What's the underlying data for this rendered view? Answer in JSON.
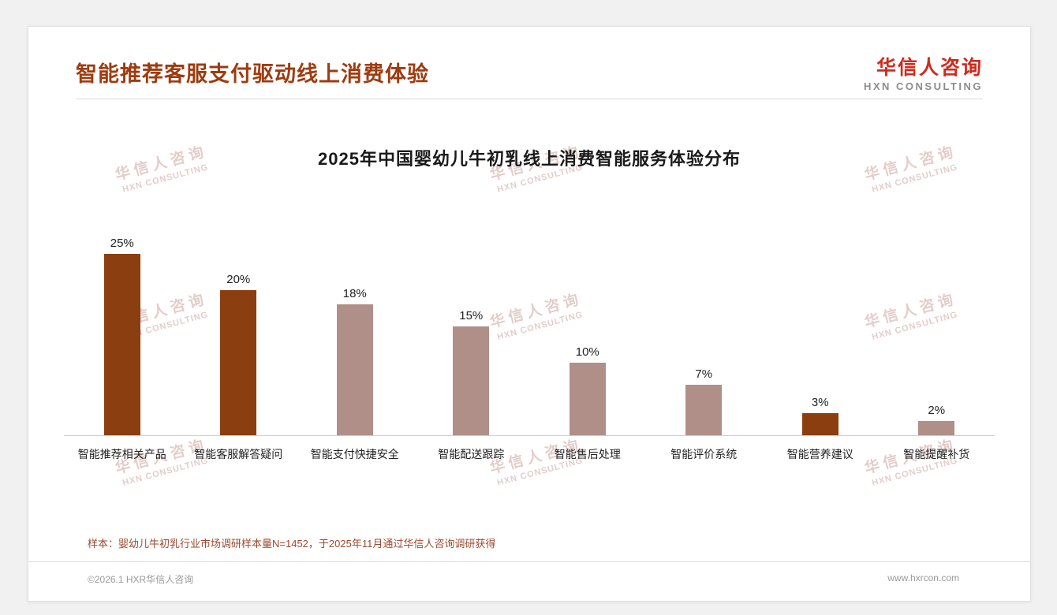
{
  "page": {
    "header": {
      "title": "智能推荐客服支付驱动线上消费体验"
    },
    "logo": {
      "cn": "华信人咨询",
      "en": "HXN CONSULTING"
    },
    "watermark": {
      "cn": "华信人咨询",
      "en": "HXN CONSULTING"
    },
    "footnote": "样本：婴幼儿牛初乳行业市场调研样本量N=1452，于2025年11月通过华信人咨询调研获得",
    "footer": {
      "left": "©2026.1 HXR华信人咨询",
      "right": "www.hxrcon.com"
    }
  },
  "colors": {
    "title_brown": "#9e3b10",
    "logo_red": "#d02a1e",
    "bar_dark": "#8b3e10",
    "bar_light": "#af8f88",
    "footnote_brown": "#9b4a2e"
  },
  "chart_data": {
    "type": "bar",
    "title": "2025年中国婴幼儿牛初乳线上消费智能服务体验分布",
    "categories": [
      "智能推荐相关产品",
      "智能客服解答疑问",
      "智能支付快捷安全",
      "智能配送跟踪",
      "智能售后处理",
      "智能评价系统",
      "智能营养建议",
      "智能提醒补货"
    ],
    "values": [
      25,
      20,
      18,
      15,
      10,
      7,
      3,
      2
    ],
    "value_labels": [
      "25%",
      "20%",
      "18%",
      "15%",
      "10%",
      "7%",
      "3%",
      "2%"
    ],
    "bar_colors": [
      "#8b3e10",
      "#8b3e10",
      "#af8f88",
      "#af8f88",
      "#af8f88",
      "#af8f88",
      "#8b3e10",
      "#af8f88"
    ],
    "xlabel": "",
    "ylabel": "",
    "ylim": [
      0,
      27
    ],
    "grid": false,
    "legend": "none",
    "unit": "%"
  }
}
